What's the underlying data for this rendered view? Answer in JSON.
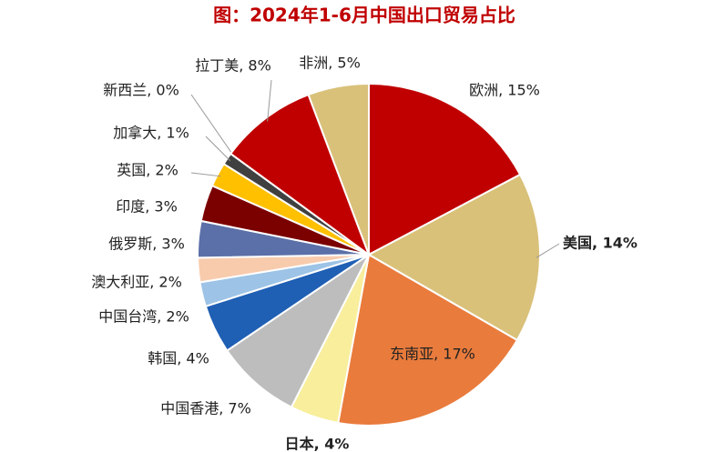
{
  "chart_data": {
    "type": "pie",
    "title": "图：2024年1-6月中国出口贸易占比",
    "values": [
      15,
      14,
      17,
      4,
      7,
      4,
      2,
      2,
      3,
      3,
      2,
      1,
      0,
      8,
      5
    ],
    "value_labels": [
      "欧洲, 15%",
      "美国, 14%",
      "东南亚, 17%",
      "日本, 4%",
      "中国香港, 7%",
      "韩国, 4%",
      "中国台湾, 2%",
      "澳大利亚, 2%",
      "俄罗斯, 3%",
      "印度, 3%",
      "英国, 2%",
      "加拿大, 1%",
      "新西兰, 0%",
      "拉丁美, 8%",
      "非洲, 5%"
    ],
    "colors": [
      "#c00000",
      "#d9c17a",
      "#e97b3c",
      "#f8ee9c",
      "#bdbdbd",
      "#1f5fb4",
      "#9dc3e6",
      "#f8cbad",
      "#5b6fa8",
      "#7b0000",
      "#ffc000",
      "#404040",
      "#a6a6a6",
      "#c00000",
      "#d9c17a"
    ]
  }
}
